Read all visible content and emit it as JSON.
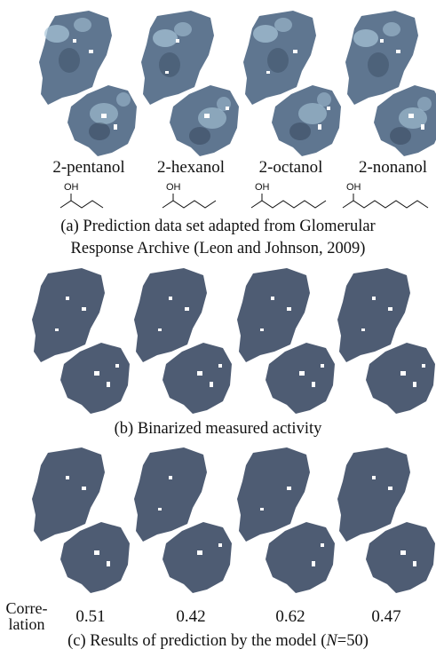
{
  "panel_a": {
    "compounds": [
      "2-pentanol",
      "2-hexanol",
      "2-octanol",
      "2-nonanol"
    ],
    "structure_label": "OH",
    "carbon_counts": [
      5,
      6,
      8,
      9
    ],
    "caption_line1": "(a) Prediction data set adapted from Glomerular",
    "caption_line2": "Response Archive (Leon and Johnson, 2009)",
    "map_colors": {
      "base": "#5f7690",
      "bright": "#a9c6d9",
      "dark": "#2f3e52"
    }
  },
  "panel_b": {
    "caption": "(b) Binarized  measured activity",
    "map_color": "#4e5c73"
  },
  "panel_c": {
    "row_label_line1": "Corre-",
    "row_label_line2": "lation",
    "correlations": [
      "0.51",
      "0.42",
      "0.62",
      "0.47"
    ],
    "caption_prefix": "(c) Results of prediction by the model (",
    "caption_var": "N",
    "caption_suffix": "=50)",
    "map_color": "#4e5c73"
  }
}
